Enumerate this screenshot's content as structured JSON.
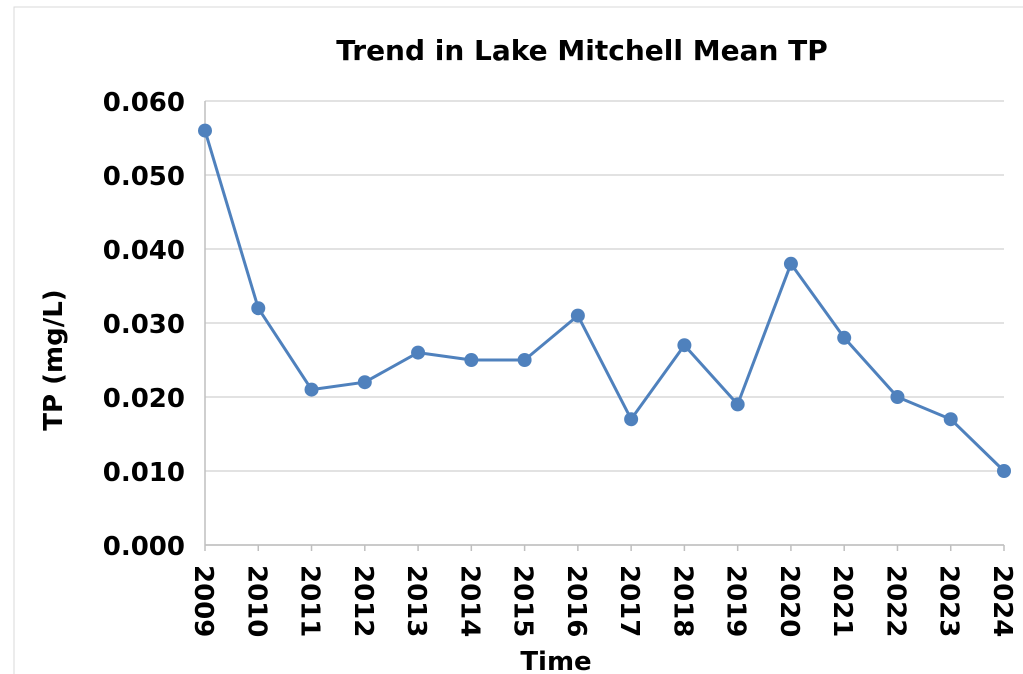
{
  "chart_data": {
    "type": "line",
    "title": "Trend in Lake Mitchell Mean TP",
    "x_label": "Time",
    "y_label": "TP (mg/L)",
    "x": [
      2009,
      2010,
      2011,
      2012,
      2013,
      2014,
      2015,
      2016,
      2017,
      2018,
      2019,
      2020,
      2021,
      2022,
      2023,
      2024
    ],
    "xlim": [
      2009,
      2024
    ],
    "xticks": [
      2009,
      2010,
      2011,
      2012,
      2013,
      2014,
      2015,
      2016,
      2017,
      2018,
      2019,
      2020,
      2021,
      2022,
      2023,
      2024
    ],
    "series": [
      {
        "color": "#4f81bd",
        "values": [
          0.056,
          0.032,
          0.021,
          0.022,
          0.026,
          0.025,
          0.025,
          0.031,
          0.017,
          0.027,
          0.019,
          0.038,
          0.028,
          0.02,
          0.017,
          0.01
        ]
      }
    ],
    "ylim": [
      0,
      0.06
    ],
    "yticks": [
      {
        "value": 0,
        "label": "0.000"
      },
      {
        "value": 0.01,
        "label": "0.010"
      },
      {
        "value": 0.02,
        "label": "0.020"
      },
      {
        "value": 0.03,
        "label": "0.030"
      },
      {
        "value": 0.04,
        "label": "0.040"
      },
      {
        "value": 0.05,
        "label": "0.050"
      },
      {
        "value": 0.06,
        "label": "0.060"
      }
    ],
    "grid": true
  }
}
